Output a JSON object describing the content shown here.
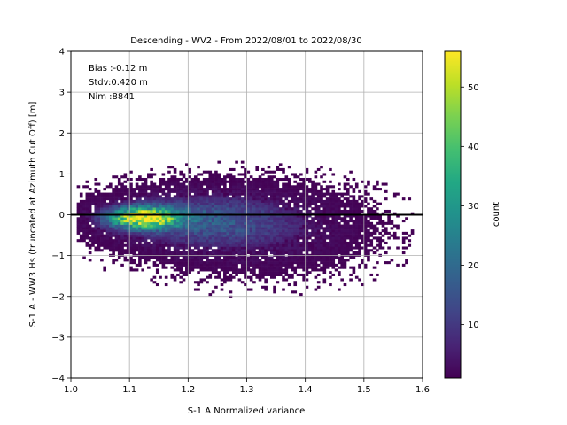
{
  "chart_data": {
    "type": "heatmap",
    "title": "Descending - WV2 - From 2022/08/01 to 2022/08/30",
    "xlabel": "S-1 A Normalized variance",
    "ylabel": "S-1 A - WW3 Hs (truncated at Azimuth Cut Off) [m]",
    "xlim": [
      1.0,
      1.6
    ],
    "ylim": [
      -4,
      4
    ],
    "x_ticks": [
      "1.0",
      "1.1",
      "1.2",
      "1.3",
      "1.4",
      "1.5",
      "1.6"
    ],
    "y_ticks": [
      "4",
      "3",
      "2",
      "1",
      "0",
      "−1",
      "−2",
      "−3",
      "−4"
    ],
    "grid": true,
    "reference_line_y": 0,
    "stats": [
      "Bias :-0.12 m",
      "Stdv:0.420 m",
      "Nim :8841"
    ],
    "colorbar": {
      "label": "count",
      "ticks": [
        "10",
        "20",
        "30",
        "40",
        "50"
      ],
      "min": 1,
      "max": 56,
      "colormap": "viridis"
    },
    "density_clusters": [
      {
        "x_center": 1.12,
        "y_center": -0.1,
        "x_sigma": 0.04,
        "y_sigma": 0.18,
        "peak_count": 55
      },
      {
        "x_center": 1.22,
        "y_center": -0.15,
        "x_sigma": 0.09,
        "y_sigma": 0.4,
        "peak_count": 14
      },
      {
        "x_center": 1.32,
        "y_center": -0.4,
        "x_sigma": 0.1,
        "y_sigma": 0.55,
        "peak_count": 5
      }
    ]
  }
}
